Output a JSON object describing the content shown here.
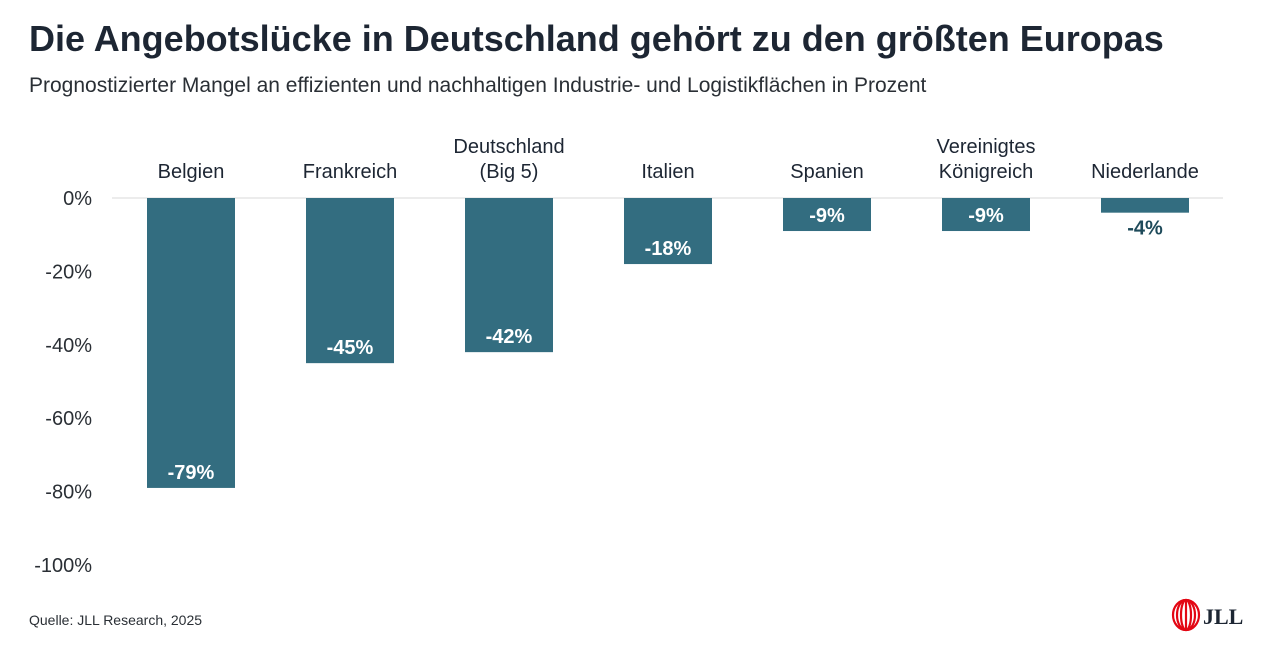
{
  "title": "Die Angebotslücke in Deutschland gehört zu den größten Europas",
  "subtitle": "Prognostizierter Mangel an effizienten und nachhaltigen Industrie- und Logistikflächen in Prozent",
  "source": "Quelle: JLL Research, 2025",
  "logo_text": "JLL",
  "colors": {
    "bar": "#336d80",
    "label_inside": "#ffffff",
    "label_outside": "#1e4a5a",
    "axis_text": "#2a2f35",
    "gridline": "#d9d9d9",
    "logo_red": "#e30613"
  },
  "chart_data": {
    "type": "bar",
    "categories": [
      [
        "Belgien"
      ],
      [
        "Frankreich"
      ],
      [
        "Deutschland",
        "(Big 5)"
      ],
      [
        "Italien"
      ],
      [
        "Spanien"
      ],
      [
        "Vereinigtes",
        "Königreich"
      ],
      [
        "Niederlande"
      ]
    ],
    "values": [
      -79,
      -45,
      -42,
      -18,
      -9,
      -9,
      -4
    ],
    "data_labels": [
      "-79%",
      "-45%",
      "-42%",
      "-18%",
      "-9%",
      "-9%",
      "-4%"
    ],
    "ylim": [
      -100,
      0
    ],
    "yticks": [
      0,
      -20,
      -40,
      -60,
      -80,
      -100
    ],
    "ytick_labels": [
      "0%",
      "-20%",
      "-40%",
      "-60%",
      "-80%",
      "-100%"
    ],
    "xlabel": "",
    "ylabel": "",
    "category_labels_position": "top",
    "grid": false
  }
}
